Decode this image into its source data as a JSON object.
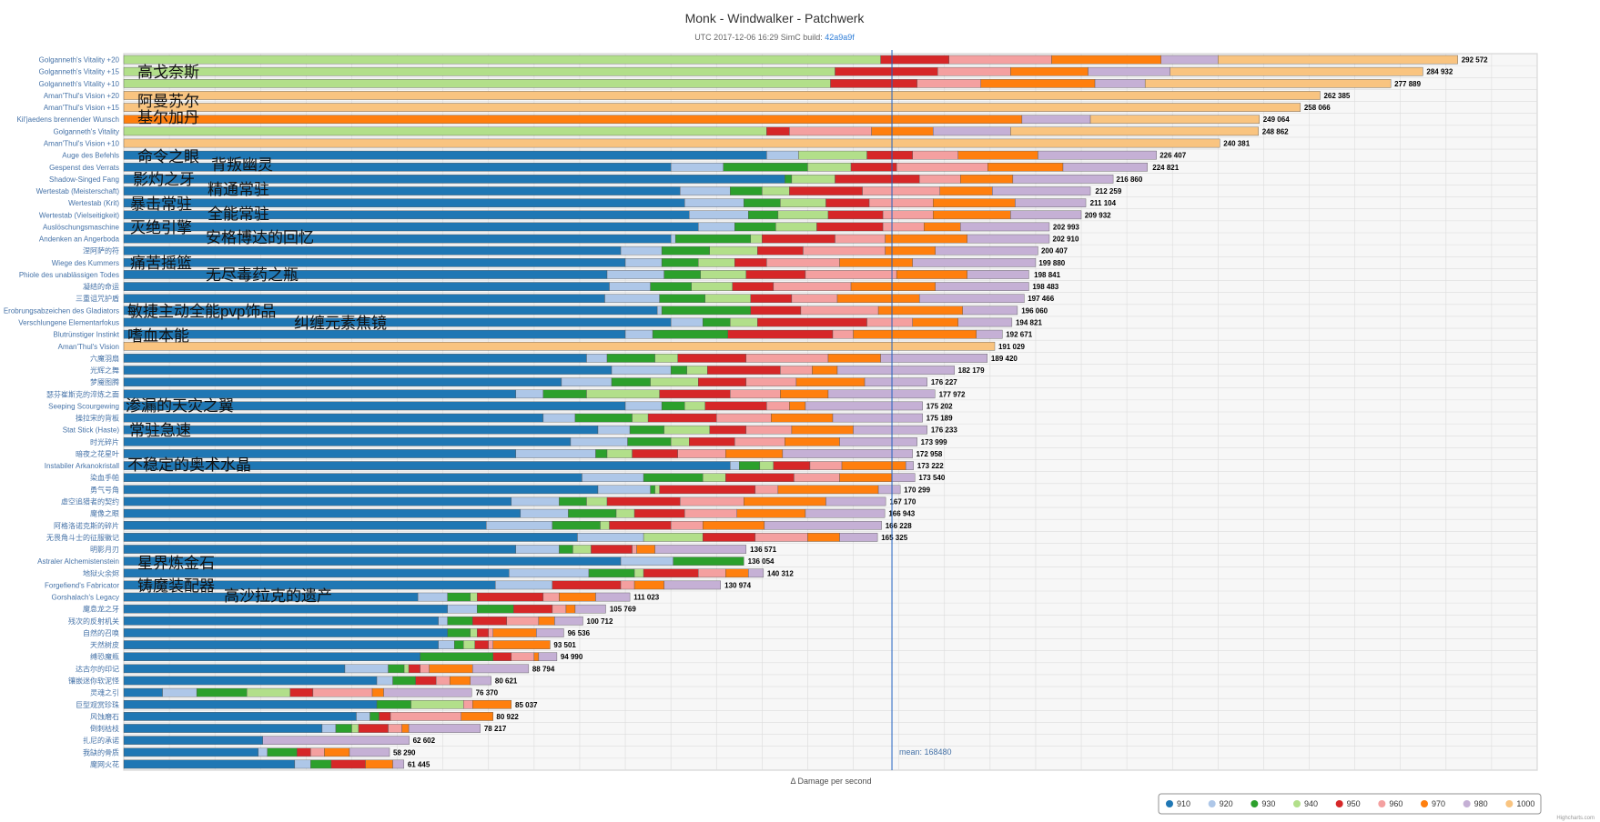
{
  "header": {
    "title": "Monk - Windwalker - Patchwerk",
    "subtitle_prefix": "UTC 2017-12-06 16:29 SimC build: ",
    "subtitle_link": "42a9a9f"
  },
  "mean_label": "mean: 168480",
  "credits": "Highcharts.com",
  "colors": {
    "910": "#1f77b4",
    "920": "#aec7e8",
    "930": "#2ca02c",
    "940": "#b2df8a",
    "950": "#d62728",
    "960": "#f4a0a0",
    "970": "#ff7f0e",
    "980": "#c5b0d5",
    "1000": "#f9c480"
  },
  "chart_data": {
    "type": "bar",
    "stacked": true,
    "orientation": "horizontal",
    "title": "Monk - Windwalker - Patchwerk",
    "xlabel": "Δ Damage per second",
    "xlim": [
      0,
      310000
    ],
    "mean": 168480,
    "grid": true,
    "legend_position": "bottom-right",
    "series_names": [
      "910",
      "920",
      "930",
      "940",
      "950",
      "960",
      "970",
      "980",
      "1000"
    ],
    "rows": [
      {
        "label": "Golganneth's Vitality +20",
        "total": 292572,
        "values": [
          0,
          0,
          0,
          166000,
          15000,
          22500,
          24000,
          12500,
          52572
        ]
      },
      {
        "label": "Golganneth's Vitality +15",
        "total": 284932,
        "values": [
          0,
          0,
          0,
          156000,
          22500,
          16000,
          17000,
          18000,
          55432
        ]
      },
      {
        "label": "Golganneth's Vitality +10",
        "total": 277889,
        "values": [
          0,
          0,
          0,
          155000,
          19000,
          14000,
          25000,
          11000,
          53889
        ]
      },
      {
        "label": "Aman'Thul's Vision +20",
        "total": 262385,
        "values": [
          0,
          0,
          0,
          0,
          0,
          0,
          0,
          0,
          262385
        ]
      },
      {
        "label": "Aman'Thul's Vision +15",
        "total": 258066,
        "values": [
          0,
          0,
          0,
          0,
          0,
          0,
          0,
          0,
          258066
        ]
      },
      {
        "label": "Kil'jaedens brennender Wunsch",
        "total": 249064,
        "values": [
          0,
          0,
          0,
          0,
          0,
          0,
          197000,
          15000,
          37064
        ]
      },
      {
        "label": "Golganneth's Vitality",
        "total": 248862,
        "values": [
          0,
          0,
          0,
          141000,
          5000,
          18000,
          13500,
          17000,
          54362
        ]
      },
      {
        "label": "Aman'Thul's Vision +10",
        "total": 240381,
        "values": [
          0,
          0,
          0,
          0,
          0,
          0,
          0,
          0,
          240381
        ]
      },
      {
        "label": "Auge des Befehls",
        "total": 226407,
        "values": [
          141000,
          7000,
          0,
          15000,
          10000,
          10000,
          17500,
          26000,
          0
        ]
      },
      {
        "label": "Gespenst des Verrats",
        "total": 224821,
        "values": [
          120000,
          11500,
          18500,
          9500,
          10000,
          20000,
          16500,
          18500,
          0
        ]
      },
      {
        "label": "Shadow-Singed Fang",
        "total": 216860,
        "values": [
          145000,
          0,
          1500,
          9500,
          18500,
          9000,
          11500,
          22000,
          0
        ]
      },
      {
        "label": "Wertestab (Meisterschaft)",
        "total": 212259,
        "values": [
          122000,
          11000,
          7000,
          6000,
          16000,
          17000,
          11500,
          21500,
          0
        ]
      },
      {
        "label": "Wertestab (Krit)",
        "total": 211104,
        "values": [
          123000,
          13000,
          8000,
          10000,
          9500,
          14000,
          18000,
          15500,
          0
        ]
      },
      {
        "label": "Wertestab (Vielseitigkeit)",
        "total": 209932,
        "values": [
          124000,
          13000,
          6500,
          11000,
          12000,
          11000,
          17000,
          15500,
          0
        ]
      },
      {
        "label": "Auslöschungsmaschine",
        "total": 202993,
        "values": [
          126000,
          8000,
          9000,
          9000,
          14500,
          9000,
          8000,
          19500,
          0
        ]
      },
      {
        "label": "Andenken an Angerboda",
        "total": 202910,
        "values": [
          120000,
          1000,
          16500,
          2500,
          16000,
          11000,
          18000,
          18000,
          0
        ]
      },
      {
        "label": "涅阿萨的符",
        "total": 200407,
        "values": [
          109000,
          9000,
          10500,
          10500,
          10000,
          18000,
          11000,
          22500,
          0
        ]
      },
      {
        "label": "Wiege des Kummers",
        "total": 199880,
        "values": [
          110000,
          8000,
          8000,
          8000,
          7000,
          16000,
          16000,
          27000,
          0
        ]
      },
      {
        "label": "Phiole des unablässigen Todes",
        "total": 198841,
        "values": [
          106000,
          12500,
          8000,
          10000,
          13000,
          20000,
          15500,
          13500,
          0
        ]
      },
      {
        "label": "凝结的命运",
        "total": 198483,
        "values": [
          106500,
          9000,
          9000,
          9000,
          9000,
          17000,
          18500,
          20500,
          0
        ]
      },
      {
        "label": "三重诅咒护盾",
        "total": 197466,
        "values": [
          105500,
          12000,
          10000,
          10000,
          9000,
          10000,
          18000,
          23000,
          0
        ]
      },
      {
        "label": "Erobrungsabzeichen des Gladiators",
        "total": 196060,
        "values": [
          117000,
          1000,
          19500,
          0,
          11000,
          17000,
          18500,
          12000,
          0
        ]
      },
      {
        "label": "Verschlungene Elementarfokus",
        "total": 194821,
        "values": [
          120000,
          7000,
          6000,
          6000,
          24000,
          10000,
          10000,
          11800,
          0
        ]
      },
      {
        "label": "Blutrünstiger Instinkt",
        "total": 192671,
        "values": [
          110000,
          6000,
          16500,
          0,
          23000,
          4500,
          27000,
          5700,
          0
        ]
      },
      {
        "label": "Aman'Thul's Vision",
        "total": 191029,
        "values": [
          0,
          0,
          0,
          0,
          0,
          0,
          0,
          0,
          191029
        ]
      },
      {
        "label": "六魔羽扇",
        "total": 189420,
        "values": [
          101500,
          4500,
          10500,
          5000,
          15000,
          18000,
          11500,
          23400,
          0
        ]
      },
      {
        "label": "光辉之舞",
        "total": 182179,
        "values": [
          107000,
          13000,
          3500,
          4500,
          16000,
          7000,
          5500,
          25700,
          0
        ]
      },
      {
        "label": "梦魇图腾",
        "total": 176227,
        "values": [
          96000,
          11000,
          8500,
          10500,
          10500,
          11000,
          15000,
          13700,
          0
        ]
      },
      {
        "label": "瑟芬崔斯克的淬炼之面",
        "total": 177972,
        "values": [
          86000,
          6000,
          9500,
          16000,
          15500,
          11000,
          10500,
          23400,
          0
        ]
      },
      {
        "label": "Seeping Scourgewing",
        "total": 175202,
        "values": [
          110000,
          8000,
          5000,
          4500,
          13500,
          5000,
          3500,
          25700,
          0
        ]
      },
      {
        "label": "操拉宋的背板",
        "total": 175189,
        "values": [
          92000,
          7000,
          12500,
          3500,
          15000,
          12000,
          13500,
          19700,
          0
        ]
      },
      {
        "label": "Stat Stick (Haste)",
        "total": 176233,
        "values": [
          104000,
          7000,
          7500,
          10000,
          8000,
          10000,
          13500,
          16200,
          0
        ]
      },
      {
        "label": "时光碎片",
        "total": 173999,
        "values": [
          98000,
          12500,
          9500,
          4000,
          10000,
          11000,
          12000,
          17000,
          0
        ]
      },
      {
        "label": "暗夜之花星叶",
        "total": 172958,
        "values": [
          86000,
          17500,
          2500,
          5500,
          10000,
          10500,
          12500,
          28500,
          0
        ]
      },
      {
        "label": "Instabiler Arkanokristall",
        "total": 173222,
        "values": [
          133000,
          2000,
          4500,
          3000,
          8000,
          7000,
          14000,
          1700,
          0
        ]
      },
      {
        "label": "染血手帕",
        "total": 173540,
        "values": [
          100500,
          13500,
          13000,
          5000,
          15000,
          10000,
          11500,
          5000,
          0
        ]
      },
      {
        "label": "勇气号角",
        "total": 170299,
        "values": [
          104000,
          11500,
          1000,
          1000,
          21000,
          5000,
          22000,
          4800,
          0
        ]
      },
      {
        "label": "虚空追猎者的契约",
        "total": 167170,
        "values": [
          85000,
          10500,
          6000,
          4500,
          16000,
          14000,
          18000,
          13100,
          0
        ]
      },
      {
        "label": "魔像之眼",
        "total": 166943,
        "values": [
          87000,
          10500,
          10500,
          4000,
          11000,
          11500,
          15000,
          17400,
          0
        ]
      },
      {
        "label": "阿格洛诺克斯的碎片",
        "total": 166228,
        "values": [
          79500,
          14500,
          10500,
          2000,
          13500,
          7000,
          13500,
          25700,
          0
        ]
      },
      {
        "label": "无畏角斗士的征服徽记",
        "total": 165325,
        "values": [
          99500,
          14500,
          0,
          13000,
          11500,
          11500,
          7000,
          8300,
          0
        ]
      },
      {
        "label": "明影月刃",
        "total": 136571,
        "values": [
          86000,
          9500,
          3000,
          4000,
          9000,
          1000,
          4000,
          20000,
          0
        ]
      },
      {
        "label": "Astraler Alchemistenstein",
        "total": 136054,
        "values": [
          109000,
          11500,
          15500,
          0,
          0,
          0,
          0,
          0,
          0
        ]
      },
      {
        "label": "地狱火余烬",
        "total": 140312,
        "values": [
          84500,
          17500,
          10000,
          2000,
          12000,
          6000,
          5000,
          3300,
          0
        ]
      },
      {
        "label": "Forgefiend's Fabricator",
        "total": 130974,
        "values": [
          81500,
          12500,
          0,
          0,
          15000,
          3000,
          6500,
          12400,
          0
        ]
      },
      {
        "label": "Gorshalach's Legacy",
        "total": 111023,
        "values": [
          64500,
          6500,
          5000,
          1500,
          14500,
          3500,
          8000,
          7500,
          0
        ]
      },
      {
        "label": "魔息龙之牙",
        "total": 105769,
        "values": [
          71000,
          6500,
          8000,
          0,
          8500,
          3000,
          2000,
          6700,
          0
        ]
      },
      {
        "label": "残次的反射机关",
        "total": 100712,
        "values": [
          69000,
          2000,
          5500,
          0,
          7500,
          7000,
          3500,
          6200,
          0
        ]
      },
      {
        "label": "自然的召唤",
        "total": 96536,
        "values": [
          71000,
          0,
          5000,
          1500,
          2500,
          1000,
          9500,
          6000,
          0
        ]
      },
      {
        "label": "天然树皮",
        "total": 93501,
        "values": [
          69000,
          3500,
          2000,
          2500,
          3000,
          1000,
          12500,
          0,
          0
        ]
      },
      {
        "label": "缚恐魔瓶",
        "total": 94990,
        "values": [
          65000,
          0,
          16000,
          0,
          4000,
          5000,
          1000,
          4000,
          0
        ]
      },
      {
        "label": "达古尔的印记",
        "total": 88794,
        "values": [
          48500,
          9500,
          3500,
          1000,
          2500,
          2000,
          9500,
          12300,
          0
        ]
      },
      {
        "label": "镶嵌迷你软泥怪",
        "total": 80621,
        "values": [
          55500,
          3500,
          5000,
          0,
          4500,
          3000,
          4500,
          4600,
          0
        ]
      },
      {
        "label": "灵魂之引",
        "total": 76370,
        "values": [
          8500,
          7500,
          11000,
          9500,
          5000,
          13000,
          2500,
          19300,
          0
        ]
      },
      {
        "label": "巨型观赏珍珠",
        "total": 85037,
        "values": [
          55500,
          0,
          7500,
          11500,
          0,
          2000,
          8500,
          0,
          0
        ]
      },
      {
        "label": "风蚀磨石",
        "total": 80922,
        "values": [
          51000,
          3000,
          2000,
          0,
          2500,
          15500,
          7000,
          0,
          0
        ]
      },
      {
        "label": "倒刺枯枝",
        "total": 78217,
        "values": [
          43500,
          3000,
          3500,
          1500,
          6500,
          3000,
          1500,
          15700,
          0
        ]
      },
      {
        "label": "扎尼的承诺",
        "total": 62602,
        "values": [
          30500,
          0,
          0,
          0,
          0,
          0,
          0,
          32102,
          0
        ]
      },
      {
        "label": "我缺的骨质",
        "total": 58290,
        "values": [
          29500,
          2000,
          6500,
          0,
          3000,
          3000,
          5500,
          8790,
          0
        ]
      },
      {
        "label": "魔网火花",
        "total": 61445,
        "values": [
          37500,
          3500,
          4500,
          0,
          7500,
          0,
          6000,
          2445,
          0
        ]
      }
    ]
  },
  "overlays": [
    {
      "text": "高戈奈斯"
    },
    {
      "text": "阿曼苏尔"
    },
    {
      "text": "基尔加丹"
    },
    {
      "text": "命令之眼"
    },
    {
      "text": "背叛幽灵"
    },
    {
      "text": "影灼之牙"
    },
    {
      "text": "精通常驻"
    },
    {
      "text": "暴击常驻"
    },
    {
      "text": "全能常驻"
    },
    {
      "text": "灭绝引擎"
    },
    {
      "text": "安格博达的回忆"
    },
    {
      "text": "痛苦摇篮"
    },
    {
      "text": "无尽毒药之瓶"
    },
    {
      "text": "敏捷主动全能pvp饰品"
    },
    {
      "text": "纠缠元素焦镜"
    },
    {
      "text": "嗜血本能"
    },
    {
      "text": "渗漏的天灾之翼"
    },
    {
      "text": "常驻急速"
    },
    {
      "text": "不稳定的奥术水晶"
    },
    {
      "text": "星界炼金石"
    },
    {
      "text": "铸魔装配器"
    },
    {
      "text": "高沙拉克的遗产"
    }
  ]
}
